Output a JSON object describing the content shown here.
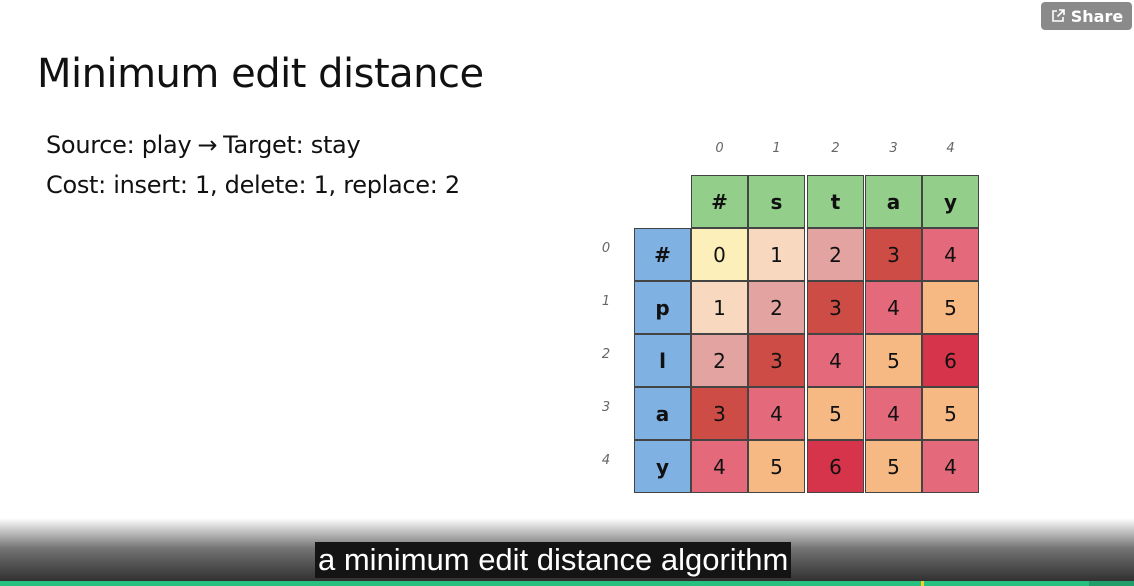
{
  "share": {
    "label": "Share",
    "icon": "share-icon"
  },
  "slide": {
    "title": "Minimum edit distance",
    "source_label": "Source: play",
    "arrow": "→",
    "target_label": "Target: stay",
    "cost_line": "Cost: insert: 1,  delete: 1, replace: 2"
  },
  "matrix": {
    "column_indices": [
      "0",
      "1",
      "2",
      "3",
      "4"
    ],
    "column_headers": [
      "#",
      "s",
      "t",
      "a",
      "y"
    ],
    "row_indices": [
      "0",
      "1",
      "2",
      "3",
      "4"
    ],
    "row_headers": [
      "#",
      "p",
      "l",
      "a",
      "y"
    ],
    "values": [
      [
        0,
        1,
        2,
        3,
        4
      ],
      [
        1,
        2,
        3,
        4,
        5
      ],
      [
        2,
        3,
        4,
        5,
        6
      ],
      [
        3,
        4,
        5,
        4,
        5
      ],
      [
        4,
        5,
        6,
        5,
        4
      ]
    ],
    "colors": {
      "column_header": "#93cf8b",
      "row_header": "#7fb1e3",
      "value_scale": {
        "0": "#fcefba",
        "1": "#f9d8c0",
        "2": "#e3a3a0",
        "3": "#cd4c45",
        "4": "#e46a7b",
        "5": "#f7b983",
        "6": "#d5344b"
      }
    }
  },
  "caption": {
    "text": "a minimum edit distance algorithm"
  },
  "video": {
    "progress_fraction": 0.96,
    "marker_fraction": 0.812,
    "colors": {
      "track": "#1f9e6a",
      "played": "#27c07f",
      "marker": "#f4d21f"
    }
  }
}
